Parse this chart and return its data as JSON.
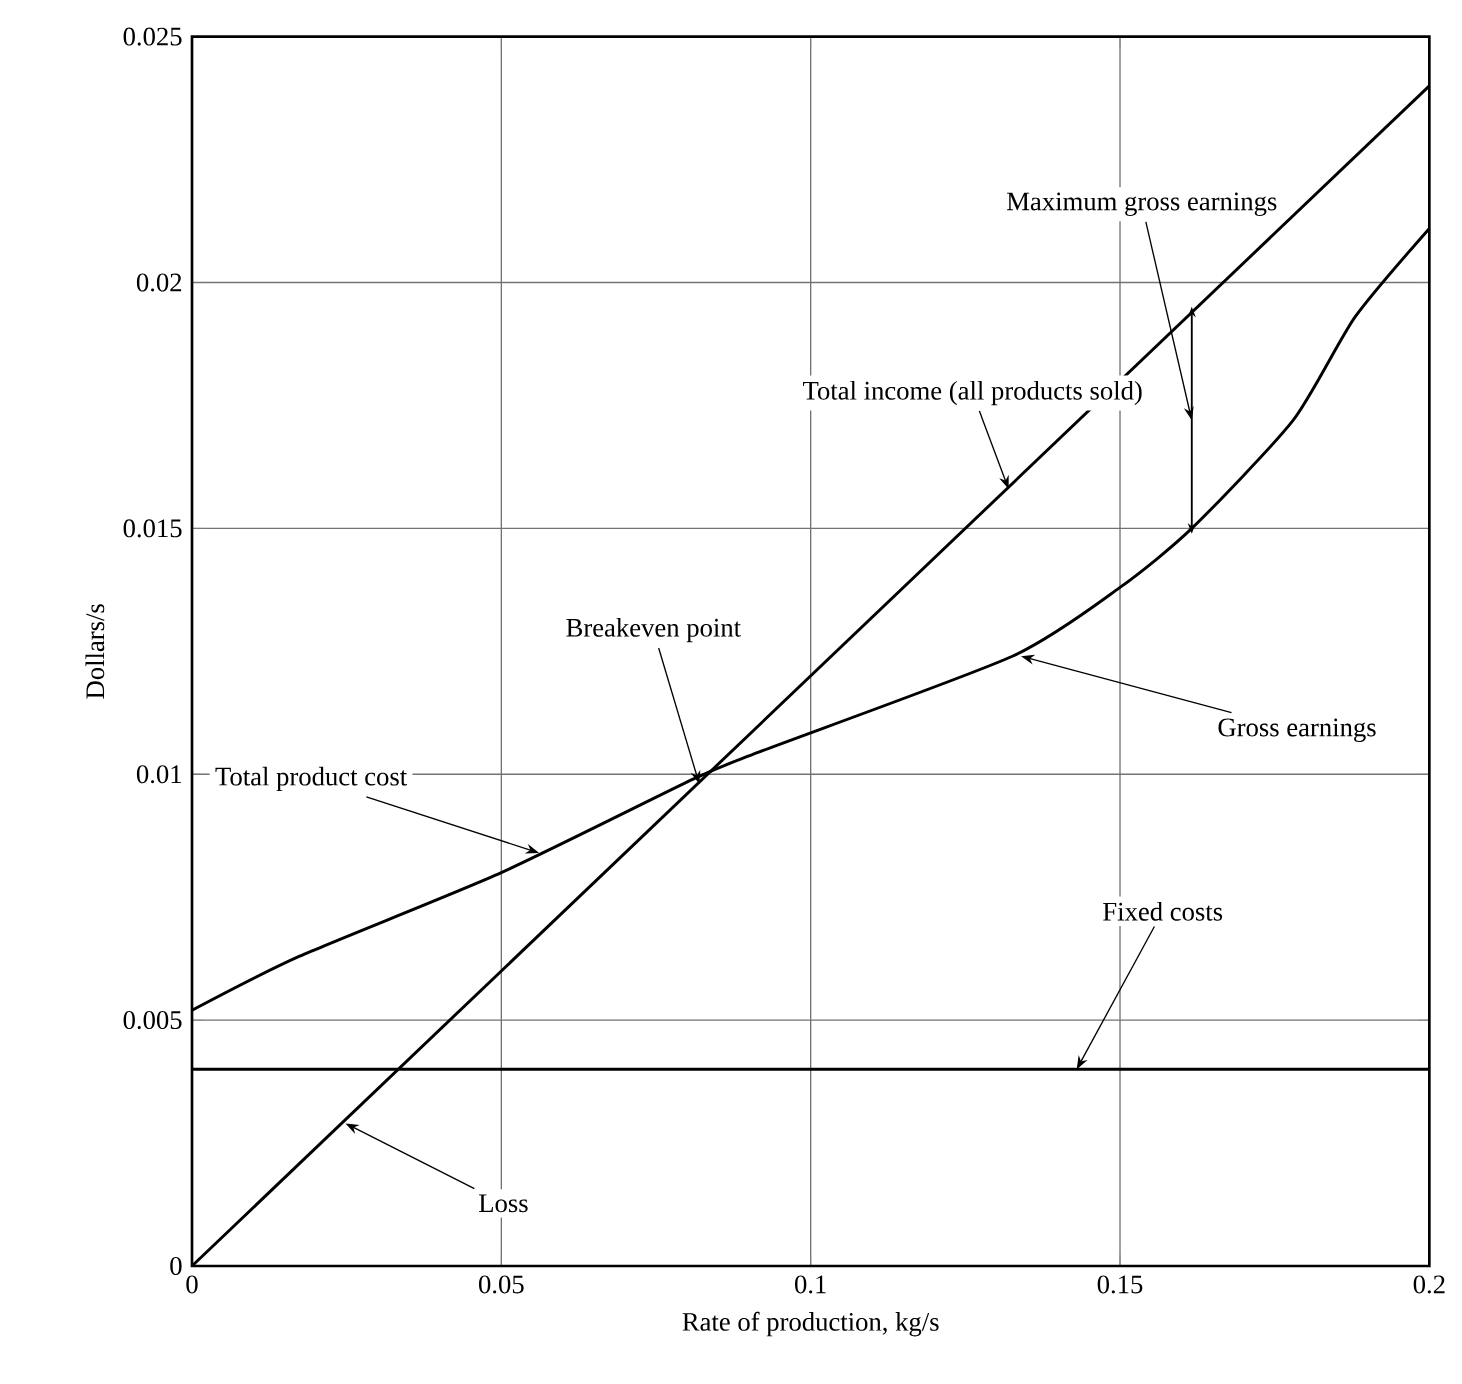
{
  "chart_data": {
    "type": "line",
    "xlabel": "Rate of production, kg/s",
    "ylabel": "Dollars/s",
    "xlim": [
      0,
      0.2
    ],
    "ylim": [
      0,
      0.025
    ],
    "xticks": [
      0,
      0.05,
      0.1,
      0.15,
      0.2
    ],
    "yticks": [
      0,
      0.005,
      0.01,
      0.015,
      0.02,
      0.025
    ],
    "grid": true,
    "line_style": "solid",
    "series": [
      {
        "color": "#000000",
        "x": [
          0,
          0.2
        ],
        "values": [
          0,
          0.024
        ]
      },
      {
        "color": "#000000",
        "x": [
          0,
          0.0174,
          0.05,
          0.081,
          0.0916,
          0.1326,
          0.15,
          0.1616,
          0.178,
          0.188,
          0.2
        ],
        "values": [
          0.0052,
          0.0063,
          0.008,
          0.0099,
          0.01045,
          0.0124,
          0.0138,
          0.015,
          0.0172,
          0.0193,
          0.0211
        ]
      },
      {
        "color": "#000000",
        "x": [
          0,
          0.2
        ],
        "values": [
          0.004,
          0.004
        ]
      },
      {
        "color": "#000000",
        "x": [
          0.1616,
          0.1616
        ],
        "values": [
          0.015,
          0.0194
        ]
      }
    ],
    "annotations": [
      {
        "text": "Maximum gross earnings",
        "x": 0.1616,
        "y": 0.0172
      },
      {
        "text": "Total income (all products sold)",
        "x": 0.132,
        "y": 0.0158
      },
      {
        "text": "Breakeven point",
        "x": 0.082,
        "y": 0.0098
      },
      {
        "text": "Total product cost",
        "x": 0.0561,
        "y": 0.0084
      },
      {
        "text": "Gross earnings",
        "x": 0.134,
        "y": 0.0124
      },
      {
        "text": "Fixed costs",
        "x": 0.143,
        "y": 0.004
      },
      {
        "text": "Loss",
        "x": 0.0248,
        "y": 0.0029
      }
    ]
  }
}
